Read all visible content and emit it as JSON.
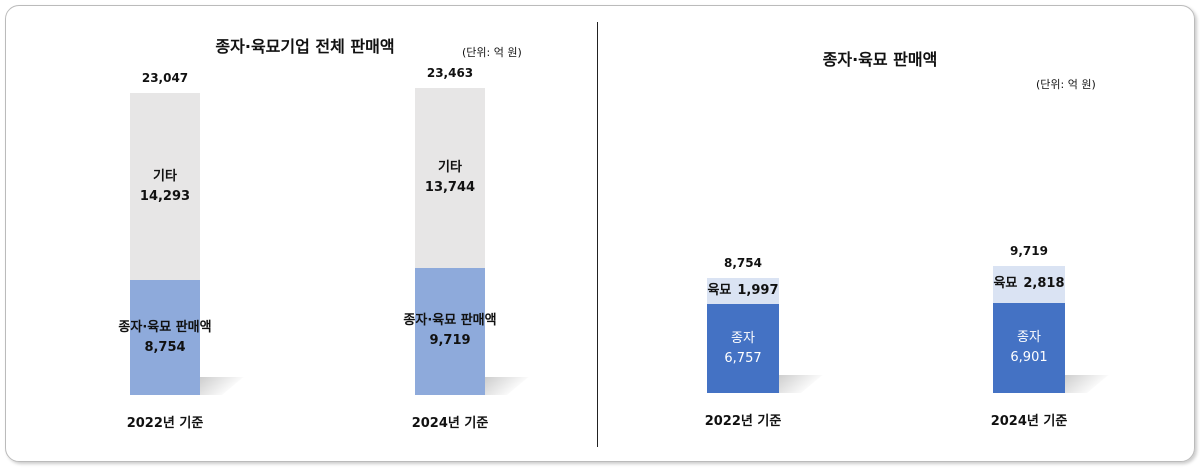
{
  "chart_data": [
    {
      "type": "bar",
      "stacked": true,
      "title": "종자·육묘기업 전체 판매액",
      "unit": "(단위: 억 원)",
      "categories": [
        "2022년 기준",
        "2024년 기준"
      ],
      "series": [
        {
          "name": "종자·육묘 판매액",
          "color": "#8eaadb",
          "values": [
            8754,
            9719
          ],
          "value_labels": [
            "8,754",
            "9,719"
          ]
        },
        {
          "name": "기타",
          "color": "#e7e6e6",
          "values": [
            14293,
            13744
          ],
          "value_labels": [
            "14,293",
            "13,744"
          ]
        }
      ],
      "totals": [
        23047,
        23463
      ],
      "total_labels": [
        "23,047",
        "23,463"
      ]
    },
    {
      "type": "bar",
      "stacked": true,
      "title": "종자·육묘 판매액",
      "unit": "(단위: 억 원)",
      "categories": [
        "2022년 기준",
        "2024년 기준"
      ],
      "series": [
        {
          "name": "종자",
          "color": "#4472c4",
          "values": [
            6757,
            6901
          ],
          "value_labels": [
            "6,757",
            "6,901"
          ]
        },
        {
          "name": "육묘",
          "color": "#dae3f3",
          "values": [
            1997,
            2818
          ],
          "value_labels": [
            "1,997",
            "2,818"
          ]
        }
      ],
      "totals": [
        8754,
        9719
      ],
      "total_labels": [
        "8,754",
        "9,719"
      ]
    }
  ]
}
